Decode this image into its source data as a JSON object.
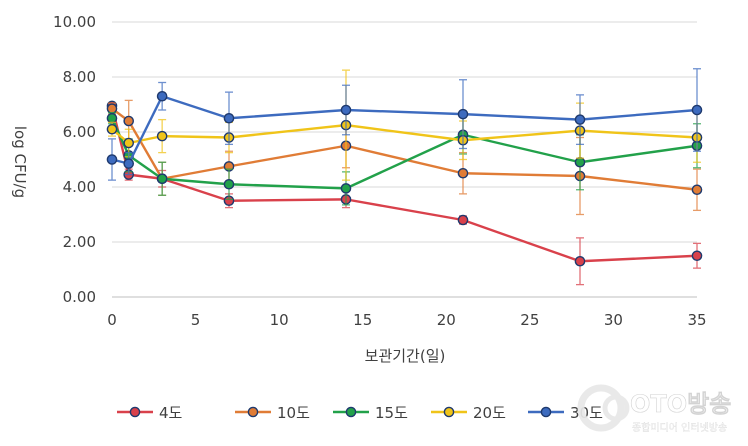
{
  "chart_data": {
    "type": "line",
    "title": "",
    "xlabel": "보관기간(일)",
    "ylabel": "log CFU/g",
    "xlim": [
      0,
      35
    ],
    "ylim": [
      0,
      10
    ],
    "xticks": [
      "0",
      "5",
      "10",
      "15",
      "20",
      "25",
      "30",
      "35"
    ],
    "yticks": [
      "0.00",
      "2.00",
      "4.00",
      "6.00",
      "8.00",
      "10.00"
    ],
    "grid": "horizontal",
    "legend_position": "bottom",
    "series": [
      {
        "name": "4도",
        "color": "#d9414b",
        "x": [
          0,
          1,
          3,
          7,
          14,
          21,
          28,
          35
        ],
        "y": [
          6.95,
          4.45,
          4.3,
          3.5,
          3.55,
          2.8,
          1.3,
          1.5
        ],
        "err": [
          0.1,
          0.2,
          0.3,
          0.25,
          0.3,
          0.15,
          0.85,
          0.45
        ]
      },
      {
        "name": "10도",
        "color": "#e07c36",
        "x": [
          0,
          1,
          3,
          7,
          14,
          21,
          28,
          35
        ],
        "y": [
          6.85,
          6.4,
          4.3,
          4.75,
          5.5,
          4.5,
          4.4,
          3.9
        ],
        "err": [
          0.2,
          0.75,
          0.6,
          0.55,
          0.8,
          0.75,
          1.4,
          0.75
        ]
      },
      {
        "name": "15도",
        "color": "#22a14a",
        "x": [
          0,
          1,
          3,
          7,
          14,
          21,
          28,
          35
        ],
        "y": [
          6.5,
          5.15,
          4.3,
          4.1,
          3.95,
          5.9,
          4.9,
          5.5
        ],
        "err": [
          0.2,
          0.6,
          0.6,
          0.55,
          0.6,
          0.7,
          1.0,
          0.8
        ]
      },
      {
        "name": "20도",
        "color": "#f0c419",
        "x": [
          0,
          1,
          3,
          7,
          14,
          21,
          28,
          35
        ],
        "y": [
          6.1,
          5.6,
          5.85,
          5.8,
          6.25,
          5.7,
          6.05,
          5.8
        ],
        "err": [
          0.25,
          0.5,
          0.6,
          0.55,
          2.0,
          0.7,
          1.0,
          0.9
        ]
      },
      {
        "name": "30도",
        "color": "#3d6bbf",
        "x": [
          0,
          1,
          3,
          7,
          14,
          21,
          28,
          35
        ],
        "y": [
          5.0,
          4.85,
          7.3,
          6.5,
          6.8,
          6.65,
          6.45,
          6.8
        ],
        "err": [
          0.75,
          0.4,
          0.5,
          0.95,
          0.9,
          1.25,
          0.9,
          1.5
        ]
      }
    ]
  },
  "watermark": {
    "brand": "OTO방송",
    "tagline": "종합미디어 인터넷방송"
  }
}
